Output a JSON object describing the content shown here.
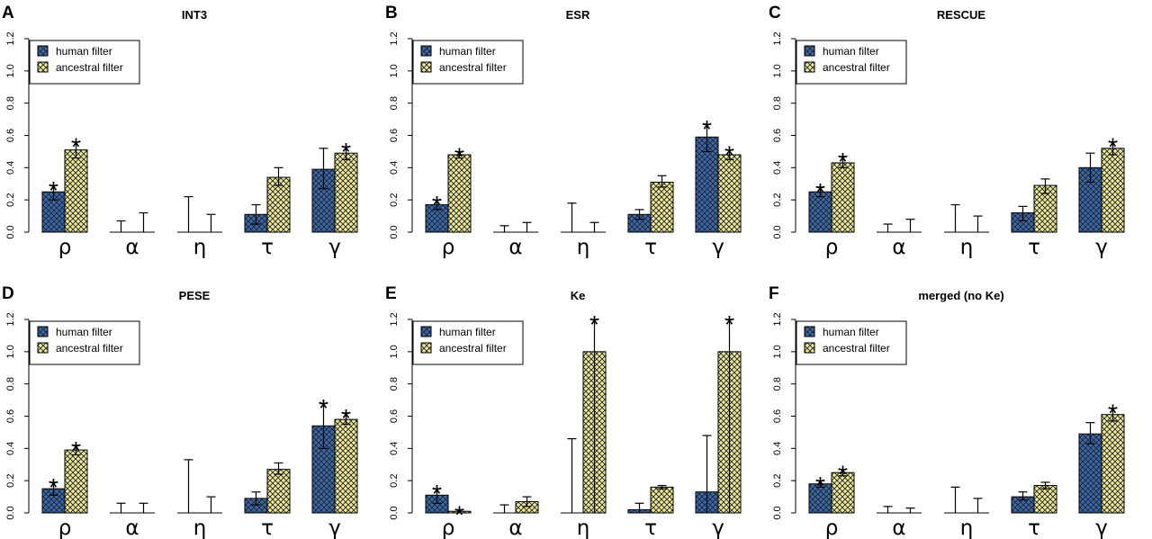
{
  "legend": {
    "labels": [
      "human filter",
      "ancestral filter"
    ]
  },
  "colors": {
    "human": "#3d6aa6",
    "ancestral": "#f3ea8c",
    "hatch": "#1a2233",
    "axis": "#000000"
  },
  "chart_data": [
    {
      "letter": "A",
      "title": "INT3",
      "type": "bar",
      "categories": [
        "ρ",
        "α",
        "η",
        "τ",
        "γ"
      ],
      "ylim": [
        0,
        1.2
      ],
      "yticks": [
        "0.0",
        "0.2",
        "0.4",
        "0.6",
        "0.8",
        "1.0",
        "1.2"
      ],
      "series": [
        {
          "name": "human filter",
          "values": [
            0.25,
            0,
            0,
            0.11,
            0.39
          ],
          "error_low": [
            0.2,
            0,
            0,
            0.05,
            0.27
          ],
          "error_high": [
            0.29,
            0.07,
            0.22,
            0.17,
            0.52
          ],
          "stars": [
            1,
            0,
            0,
            0,
            0
          ]
        },
        {
          "name": "ancestral filter",
          "values": [
            0.51,
            0,
            0,
            0.34,
            0.49
          ],
          "error_low": [
            0.46,
            0,
            0,
            0.29,
            0.45
          ],
          "error_high": [
            0.56,
            0.12,
            0.11,
            0.4,
            0.53
          ],
          "stars": [
            1,
            0,
            0,
            0,
            1
          ]
        }
      ]
    },
    {
      "letter": "B",
      "title": "ESR",
      "type": "bar",
      "categories": [
        "ρ",
        "α",
        "η",
        "τ",
        "γ"
      ],
      "ylim": [
        0,
        1.2
      ],
      "yticks": [
        "0.0",
        "0.2",
        "0.4",
        "0.6",
        "0.8",
        "1.0",
        "1.2"
      ],
      "series": [
        {
          "name": "human filter",
          "values": [
            0.17,
            0,
            0,
            0.11,
            0.59
          ],
          "error_low": [
            0.14,
            0,
            0,
            0.08,
            0.5
          ],
          "error_high": [
            0.2,
            0.04,
            0.18,
            0.14,
            0.67
          ],
          "stars": [
            1,
            0,
            0,
            0,
            1
          ]
        },
        {
          "name": "ancestral filter",
          "values": [
            0.48,
            0,
            0,
            0.31,
            0.48
          ],
          "error_low": [
            0.46,
            0,
            0,
            0.28,
            0.45
          ],
          "error_high": [
            0.5,
            0.06,
            0.06,
            0.35,
            0.51
          ],
          "stars": [
            1,
            0,
            0,
            0,
            1
          ]
        }
      ]
    },
    {
      "letter": "C",
      "title": "RESCUE",
      "type": "bar",
      "categories": [
        "ρ",
        "α",
        "η",
        "τ",
        "γ"
      ],
      "ylim": [
        0,
        1.2
      ],
      "yticks": [
        "0.0",
        "0.2",
        "0.4",
        "0.6",
        "0.8",
        "1.0",
        "1.2"
      ],
      "series": [
        {
          "name": "human filter",
          "values": [
            0.25,
            0,
            0,
            0.12,
            0.4
          ],
          "error_low": [
            0.22,
            0,
            0,
            0.07,
            0.31
          ],
          "error_high": [
            0.28,
            0.05,
            0.17,
            0.16,
            0.49
          ],
          "stars": [
            1,
            0,
            0,
            0,
            0
          ]
        },
        {
          "name": "ancestral filter",
          "values": [
            0.43,
            0,
            0,
            0.29,
            0.52
          ],
          "error_low": [
            0.4,
            0,
            0,
            0.24,
            0.48
          ],
          "error_high": [
            0.47,
            0.08,
            0.1,
            0.33,
            0.56
          ],
          "stars": [
            1,
            0,
            0,
            0,
            1
          ]
        }
      ]
    },
    {
      "letter": "D",
      "title": "PESE",
      "type": "bar",
      "categories": [
        "ρ",
        "α",
        "η",
        "τ",
        "γ"
      ],
      "ylim": [
        0,
        1.2
      ],
      "yticks": [
        "0.0",
        "0.2",
        "0.4",
        "0.6",
        "0.8",
        "1.0",
        "1.2"
      ],
      "series": [
        {
          "name": "human filter",
          "values": [
            0.15,
            0,
            0,
            0.09,
            0.54
          ],
          "error_low": [
            0.11,
            0,
            0,
            0.05,
            0.4
          ],
          "error_high": [
            0.19,
            0.06,
            0.33,
            0.13,
            0.68
          ],
          "stars": [
            1,
            0,
            0,
            0,
            1
          ]
        },
        {
          "name": "ancestral filter",
          "values": [
            0.39,
            0,
            0,
            0.27,
            0.58
          ],
          "error_low": [
            0.36,
            0,
            0,
            0.24,
            0.55
          ],
          "error_high": [
            0.42,
            0.06,
            0.1,
            0.31,
            0.62
          ],
          "stars": [
            1,
            0,
            0,
            0,
            1
          ]
        }
      ]
    },
    {
      "letter": "E",
      "title": "Ke",
      "type": "bar",
      "categories": [
        "ρ",
        "α",
        "η",
        "τ",
        "γ"
      ],
      "ylim": [
        0,
        1.2
      ],
      "yticks": [
        "0.0",
        "0.2",
        "0.4",
        "0.6",
        "0.8",
        "1.0",
        "1.2"
      ],
      "series": [
        {
          "name": "human filter",
          "values": [
            0.11,
            0,
            0,
            0.02,
            0.13
          ],
          "error_low": [
            0.06,
            0,
            0,
            0,
            0
          ],
          "error_high": [
            0.15,
            0.05,
            0.46,
            0.06,
            0.48
          ],
          "stars": [
            1,
            0,
            0,
            0,
            0
          ]
        },
        {
          "name": "ancestral filter",
          "values": [
            0.01,
            0.07,
            1.0,
            0.16,
            1.0
          ],
          "error_low": [
            0,
            0.04,
            0,
            0.15,
            0
          ],
          "error_high": [
            0.02,
            0.1,
            1.2,
            0.17,
            1.2
          ],
          "stars": [
            1,
            0,
            1,
            0,
            1
          ]
        }
      ]
    },
    {
      "letter": "F",
      "title": "merged (no Ke)",
      "type": "bar",
      "categories": [
        "ρ",
        "α",
        "η",
        "τ",
        "γ"
      ],
      "ylim": [
        0,
        1.2
      ],
      "yticks": [
        "0.0",
        "0.2",
        "0.4",
        "0.6",
        "0.8",
        "1.0",
        "1.2"
      ],
      "series": [
        {
          "name": "human filter",
          "values": [
            0.18,
            0,
            0,
            0.1,
            0.49
          ],
          "error_low": [
            0.16,
            0,
            0,
            0.08,
            0.43
          ],
          "error_high": [
            0.2,
            0.04,
            0.16,
            0.13,
            0.56
          ],
          "stars": [
            1,
            0,
            0,
            0,
            0
          ]
        },
        {
          "name": "ancestral filter",
          "values": [
            0.25,
            0,
            0,
            0.17,
            0.61
          ],
          "error_low": [
            0.23,
            0,
            0,
            0.15,
            0.57
          ],
          "error_high": [
            0.27,
            0.03,
            0.09,
            0.19,
            0.65
          ],
          "stars": [
            1,
            0,
            0,
            0,
            1
          ]
        }
      ]
    }
  ]
}
